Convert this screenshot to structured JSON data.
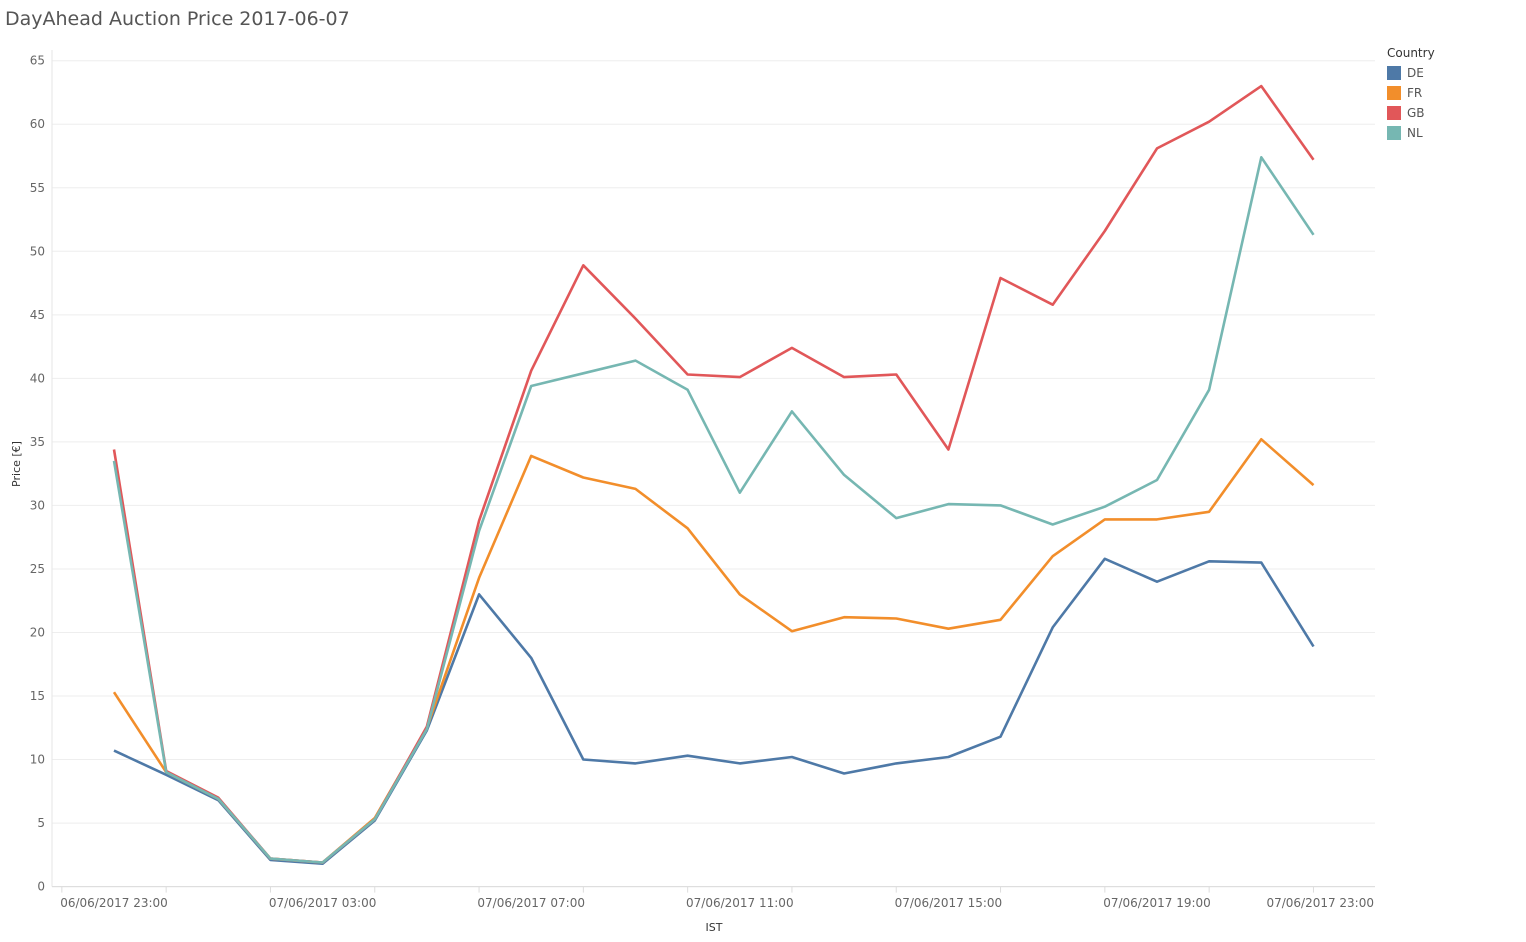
{
  "chart_data": {
    "type": "line",
    "title": "DayAhead Auction Price 2017-06-07",
    "xlabel": "IST",
    "ylabel": "Price [€]",
    "ylim": [
      0,
      65
    ],
    "yticks": [
      "0",
      "5",
      "10",
      "15",
      "20",
      "25",
      "30",
      "35",
      "40",
      "45",
      "50",
      "55",
      "60",
      "65"
    ],
    "xtick_labels": [
      "06/06/2017 23:00",
      "07/06/2017 03:00",
      "07/06/2017 07:00",
      "07/06/2017 11:00",
      "07/06/2017 15:00",
      "07/06/2017 19:00",
      "07/06/2017 23:00"
    ],
    "x": [
      "06/06/2017 23:00",
      "07/06/2017 00:00",
      "07/06/2017 01:00",
      "07/06/2017 02:00",
      "07/06/2017 03:00",
      "07/06/2017 04:00",
      "07/06/2017 05:00",
      "07/06/2017 06:00",
      "07/06/2017 07:00",
      "07/06/2017 08:00",
      "07/06/2017 09:00",
      "07/06/2017 10:00",
      "07/06/2017 11:00",
      "07/06/2017 12:00",
      "07/06/2017 13:00",
      "07/06/2017 14:00",
      "07/06/2017 15:00",
      "07/06/2017 16:00",
      "07/06/2017 17:00",
      "07/06/2017 18:00",
      "07/06/2017 19:00",
      "07/06/2017 20:00",
      "07/06/2017 21:00",
      "07/06/2017 22:00"
    ],
    "grid": true,
    "legend": {
      "title": "Country",
      "placement": "top-right"
    },
    "series": [
      {
        "name": "DE",
        "color": "#4e79a7",
        "values": [
          10.7,
          8.8,
          6.8,
          2.1,
          1.8,
          5.2,
          12.3,
          23.0,
          18.0,
          10.0,
          9.7,
          10.3,
          9.7,
          10.2,
          8.9,
          9.7,
          10.2,
          11.8,
          20.4,
          25.8,
          24.0,
          25.6,
          25.5,
          18.9
        ]
      },
      {
        "name": "FR",
        "color": "#f28e2b",
        "values": [
          15.3,
          9.0,
          6.9,
          2.2,
          1.9,
          5.4,
          12.5,
          24.3,
          33.9,
          32.2,
          31.3,
          28.2,
          23.0,
          20.1,
          21.2,
          21.1,
          20.3,
          21.0,
          26.0,
          28.9,
          28.9,
          29.5,
          35.2,
          31.6
        ]
      },
      {
        "name": "GB",
        "color": "#e15759",
        "values": [
          34.4,
          9.1,
          7.0,
          2.2,
          1.9,
          5.3,
          12.6,
          28.8,
          40.6,
          48.9,
          44.7,
          40.3,
          40.1,
          42.4,
          40.1,
          40.3,
          34.4,
          47.9,
          45.8,
          51.6,
          58.1,
          60.2,
          63.0,
          57.2
        ]
      },
      {
        "name": "NL",
        "color": "#76b7b2",
        "values": [
          33.5,
          9.0,
          6.9,
          2.2,
          1.9,
          5.3,
          12.4,
          28.0,
          39.4,
          40.4,
          41.4,
          39.1,
          31.0,
          37.4,
          32.4,
          29.0,
          30.1,
          30.0,
          28.5,
          29.9,
          32.0,
          39.1,
          57.4,
          51.3
        ]
      }
    ]
  }
}
